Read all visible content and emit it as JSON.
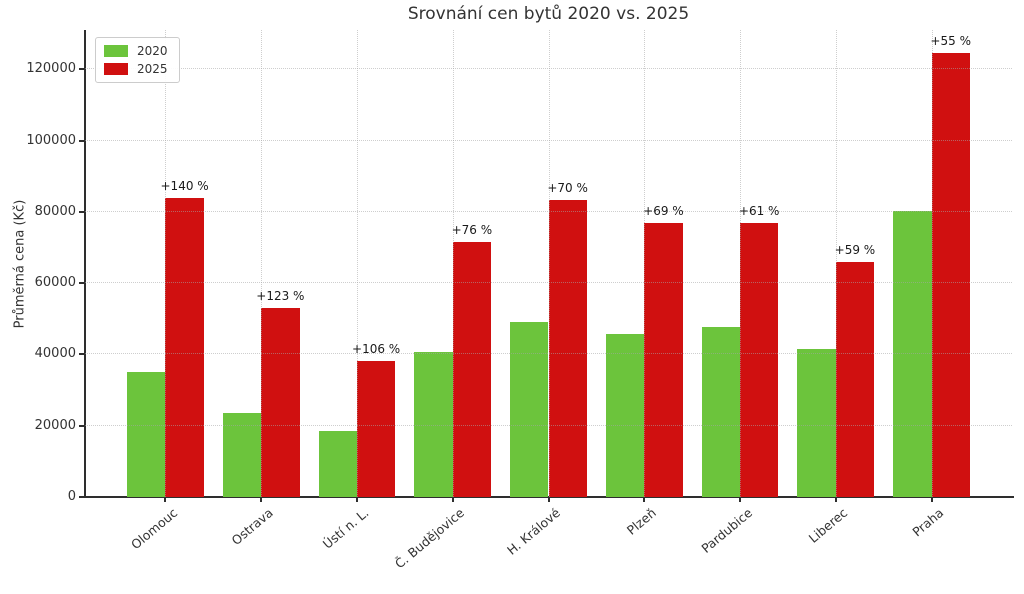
{
  "chart_data": {
    "type": "bar",
    "title": "Srovnání cen bytů 2020 vs. 2025",
    "ylabel": "Průměrná cena (Kč)",
    "xlabel": "",
    "categories": [
      "Olomouc",
      "Ostrava",
      "Ústí n. L.",
      "Č. Budějovice",
      "H. Králové",
      "Plzeň",
      "Pardubice",
      "Liberec",
      "Praha"
    ],
    "series": [
      {
        "name": "2020",
        "color": "#6cc43c",
        "values": [
          35000,
          23700,
          18500,
          40700,
          49000,
          45600,
          47700,
          41500,
          80300
        ]
      },
      {
        "name": "2025",
        "color": "#d01010",
        "values": [
          84000,
          52900,
          38100,
          71600,
          83300,
          77000,
          76800,
          66000,
          124500
        ]
      }
    ],
    "annotations": [
      "+140 %",
      "+123 %",
      "+106 %",
      "+76 %",
      "+70 %",
      "+69 %",
      "+61 %",
      "+59 %",
      "+55 %"
    ],
    "yticks": [
      0,
      20000,
      40000,
      60000,
      80000,
      100000,
      120000
    ],
    "ylim": [
      0,
      131000
    ],
    "grid": true,
    "legend_position": "upper left",
    "colors": {
      "bar_2020": "#6cc43c",
      "bar_2025": "#d01010",
      "grid": "#a5a5a5",
      "axis": "#2e2e2e",
      "text": "#333333"
    }
  }
}
